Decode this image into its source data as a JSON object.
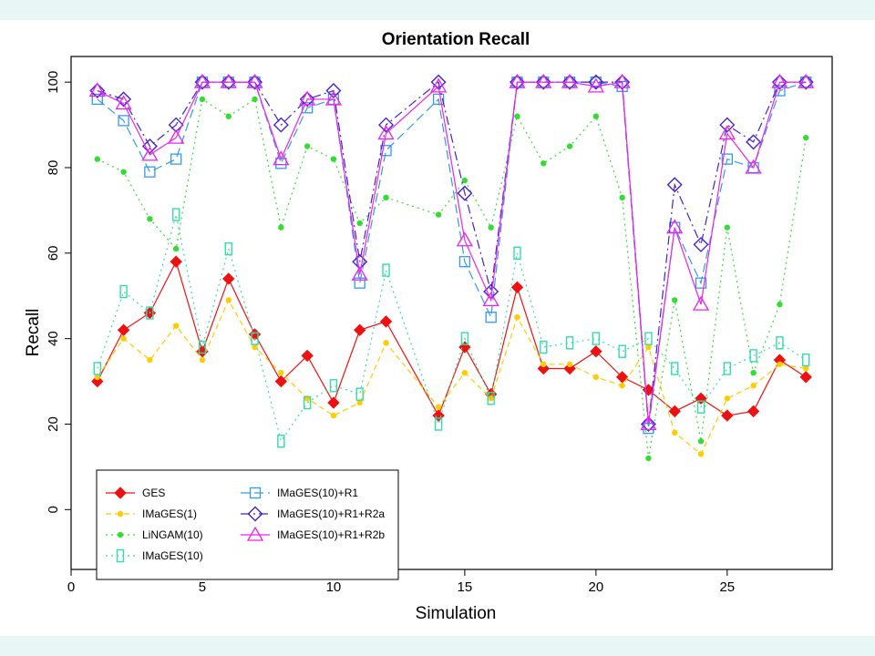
{
  "chart_data": {
    "type": "line",
    "title": "Orientation Recall",
    "xlabel": "Simulation",
    "ylabel": "Recall",
    "xlim": [
      0,
      29
    ],
    "ylim": [
      -14,
      106
    ],
    "x_ticks": [
      0,
      5,
      10,
      15,
      20,
      25
    ],
    "y_ticks": [
      0,
      20,
      40,
      60,
      80,
      100
    ],
    "grid": false,
    "legend_position": "bottom-left",
    "x": [
      1,
      2,
      3,
      4,
      5,
      6,
      7,
      8,
      9,
      10,
      11,
      12,
      14,
      15,
      16,
      17,
      18,
      19,
      20,
      21,
      22,
      23,
      24,
      25,
      26,
      27,
      28
    ],
    "series": [
      {
        "name": "GES",
        "color": "#ee1111",
        "marker": "diamond",
        "dash": "",
        "values": [
          30,
          42,
          46,
          58,
          37,
          54,
          41,
          30,
          36,
          25,
          42,
          44,
          22,
          38,
          27,
          52,
          33,
          33,
          37,
          31,
          28,
          23,
          26,
          22,
          23,
          35,
          31
        ]
      },
      {
        "name": "IMaGES(1)",
        "color": "#ffcc00",
        "marker": "dot",
        "dash": "6,4",
        "values": [
          31,
          40,
          35,
          43,
          35,
          49,
          38,
          32,
          26,
          22,
          25,
          39,
          24,
          32,
          26,
          45,
          34,
          34,
          31,
          29,
          38,
          18,
          13,
          26,
          29,
          34,
          33
        ]
      },
      {
        "name": "LiNGAM(10)",
        "color": "#33dd33",
        "marker": "dot",
        "dash": "2,4",
        "values": [
          82,
          79,
          68,
          61,
          96,
          92,
          96,
          66,
          85,
          82,
          67,
          73,
          69,
          77,
          66,
          92,
          81,
          85,
          92,
          73,
          12,
          49,
          16,
          66,
          32,
          48,
          87
        ]
      },
      {
        "name": "IMaGES(10)",
        "color": "#33ddaa",
        "marker": "rect",
        "dash": "2,4",
        "values": [
          33,
          51,
          46,
          69,
          38,
          61,
          40,
          16,
          25,
          29,
          27,
          56,
          20,
          40,
          26,
          60,
          38,
          39,
          40,
          37,
          40,
          33,
          24,
          33,
          36,
          39,
          35
        ]
      },
      {
        "name": "IMaGES(10)+R1",
        "color": "#3399ee",
        "marker": "square",
        "dash": "10,5",
        "values": [
          96,
          91,
          79,
          82,
          100,
          100,
          100,
          81,
          94,
          96,
          53,
          84,
          96,
          58,
          45,
          100,
          100,
          100,
          100,
          99,
          19,
          66,
          53,
          82,
          80,
          98,
          100
        ]
      },
      {
        "name": "IMaGES(10)+R1+R2a",
        "color": "#4422cc",
        "marker": "diamond-open",
        "dash": "10,4,2,4",
        "values": [
          98,
          96,
          85,
          90,
          100,
          100,
          100,
          90,
          96,
          98,
          58,
          90,
          100,
          74,
          51,
          100,
          100,
          100,
          100,
          100,
          20,
          76,
          62,
          90,
          86,
          100,
          100
        ]
      },
      {
        "name": "IMaGES(10)+R1+R2b",
        "color": "#ee22ee",
        "marker": "triangle",
        "dash": "",
        "values": [
          98,
          95,
          83,
          87,
          100,
          100,
          100,
          82,
          96,
          96,
          55,
          88,
          99,
          63,
          49,
          100,
          100,
          100,
          99,
          100,
          20,
          66,
          48,
          88,
          80,
          100,
          100
        ]
      }
    ]
  }
}
